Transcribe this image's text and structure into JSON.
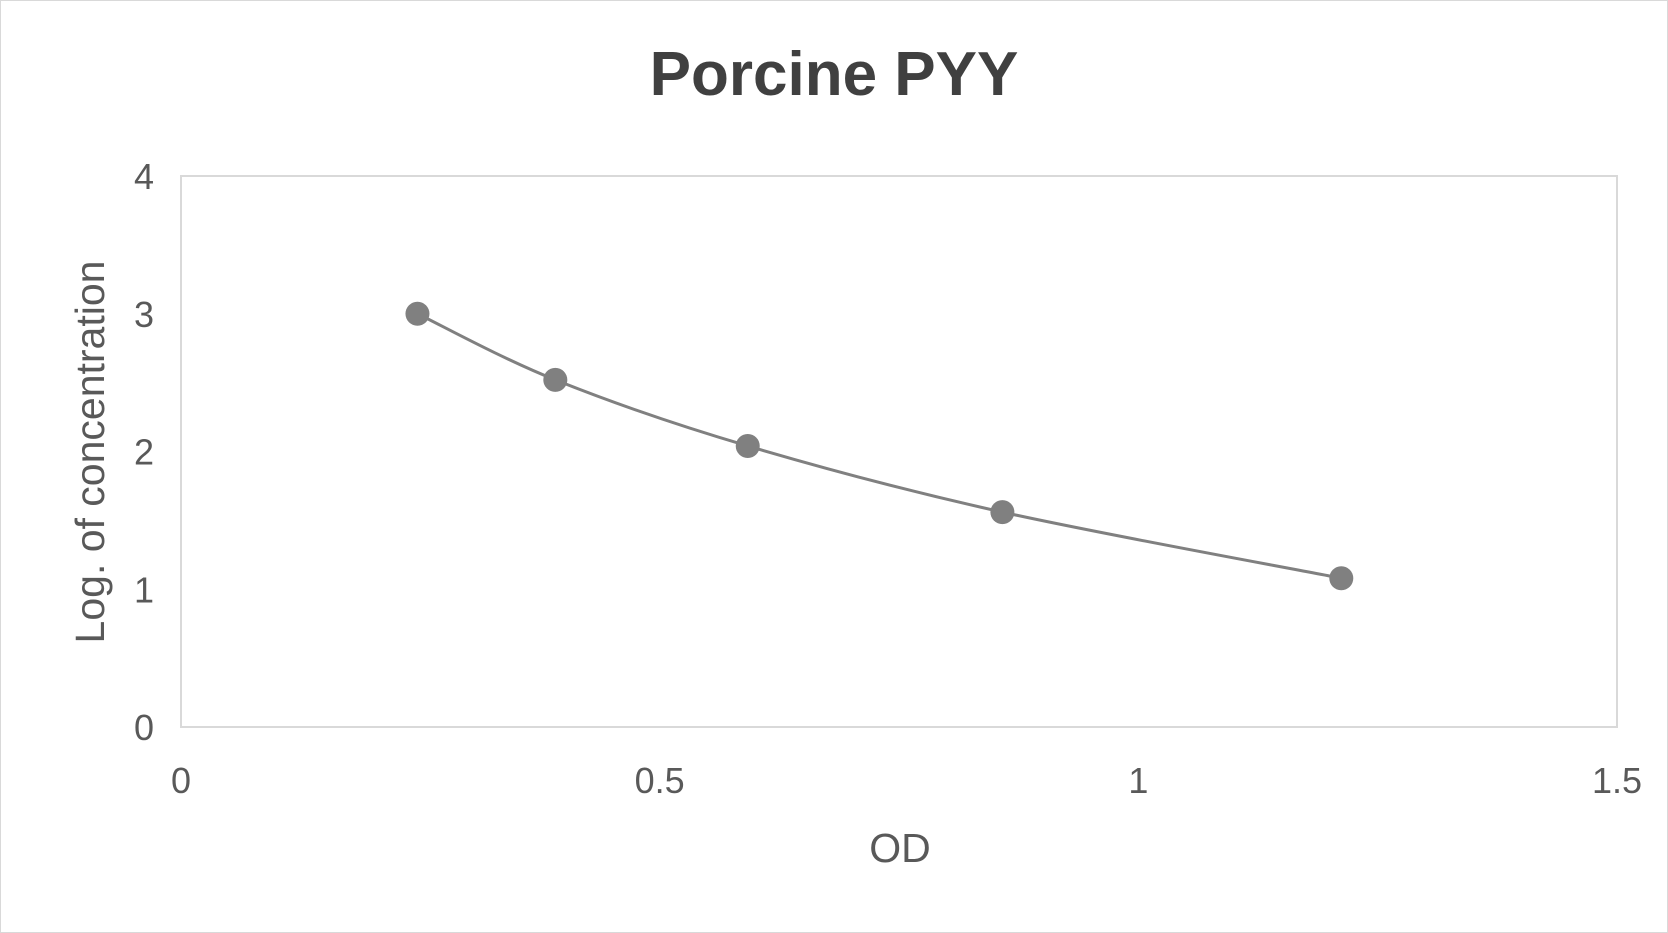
{
  "chart_data": {
    "type": "scatter",
    "title": "Porcine PYY",
    "xlabel": "OD",
    "ylabel": "Log. of concentration",
    "xlim": [
      0,
      1.5
    ],
    "ylim": [
      0,
      4
    ],
    "x_ticks": [
      "0",
      "0.5",
      "1",
      "1.5"
    ],
    "y_ticks": [
      "0",
      "1",
      "2",
      "3",
      "4"
    ],
    "x_tick_values": [
      0,
      0.5,
      1,
      1.5
    ],
    "y_tick_values": [
      0,
      1,
      2,
      3,
      4
    ],
    "grid": false,
    "legend": "none",
    "smooth_line": true,
    "series": [
      {
        "x": [
          0.247,
          0.391,
          0.592,
          0.858,
          1.212
        ],
        "y": [
          3.0,
          2.52,
          2.04,
          1.56,
          1.08
        ]
      }
    ],
    "colors": {
      "marker": "#808080",
      "line": "#808080",
      "plot_border": "#d9d9d9",
      "text": "#595959",
      "title": "#404040"
    }
  }
}
